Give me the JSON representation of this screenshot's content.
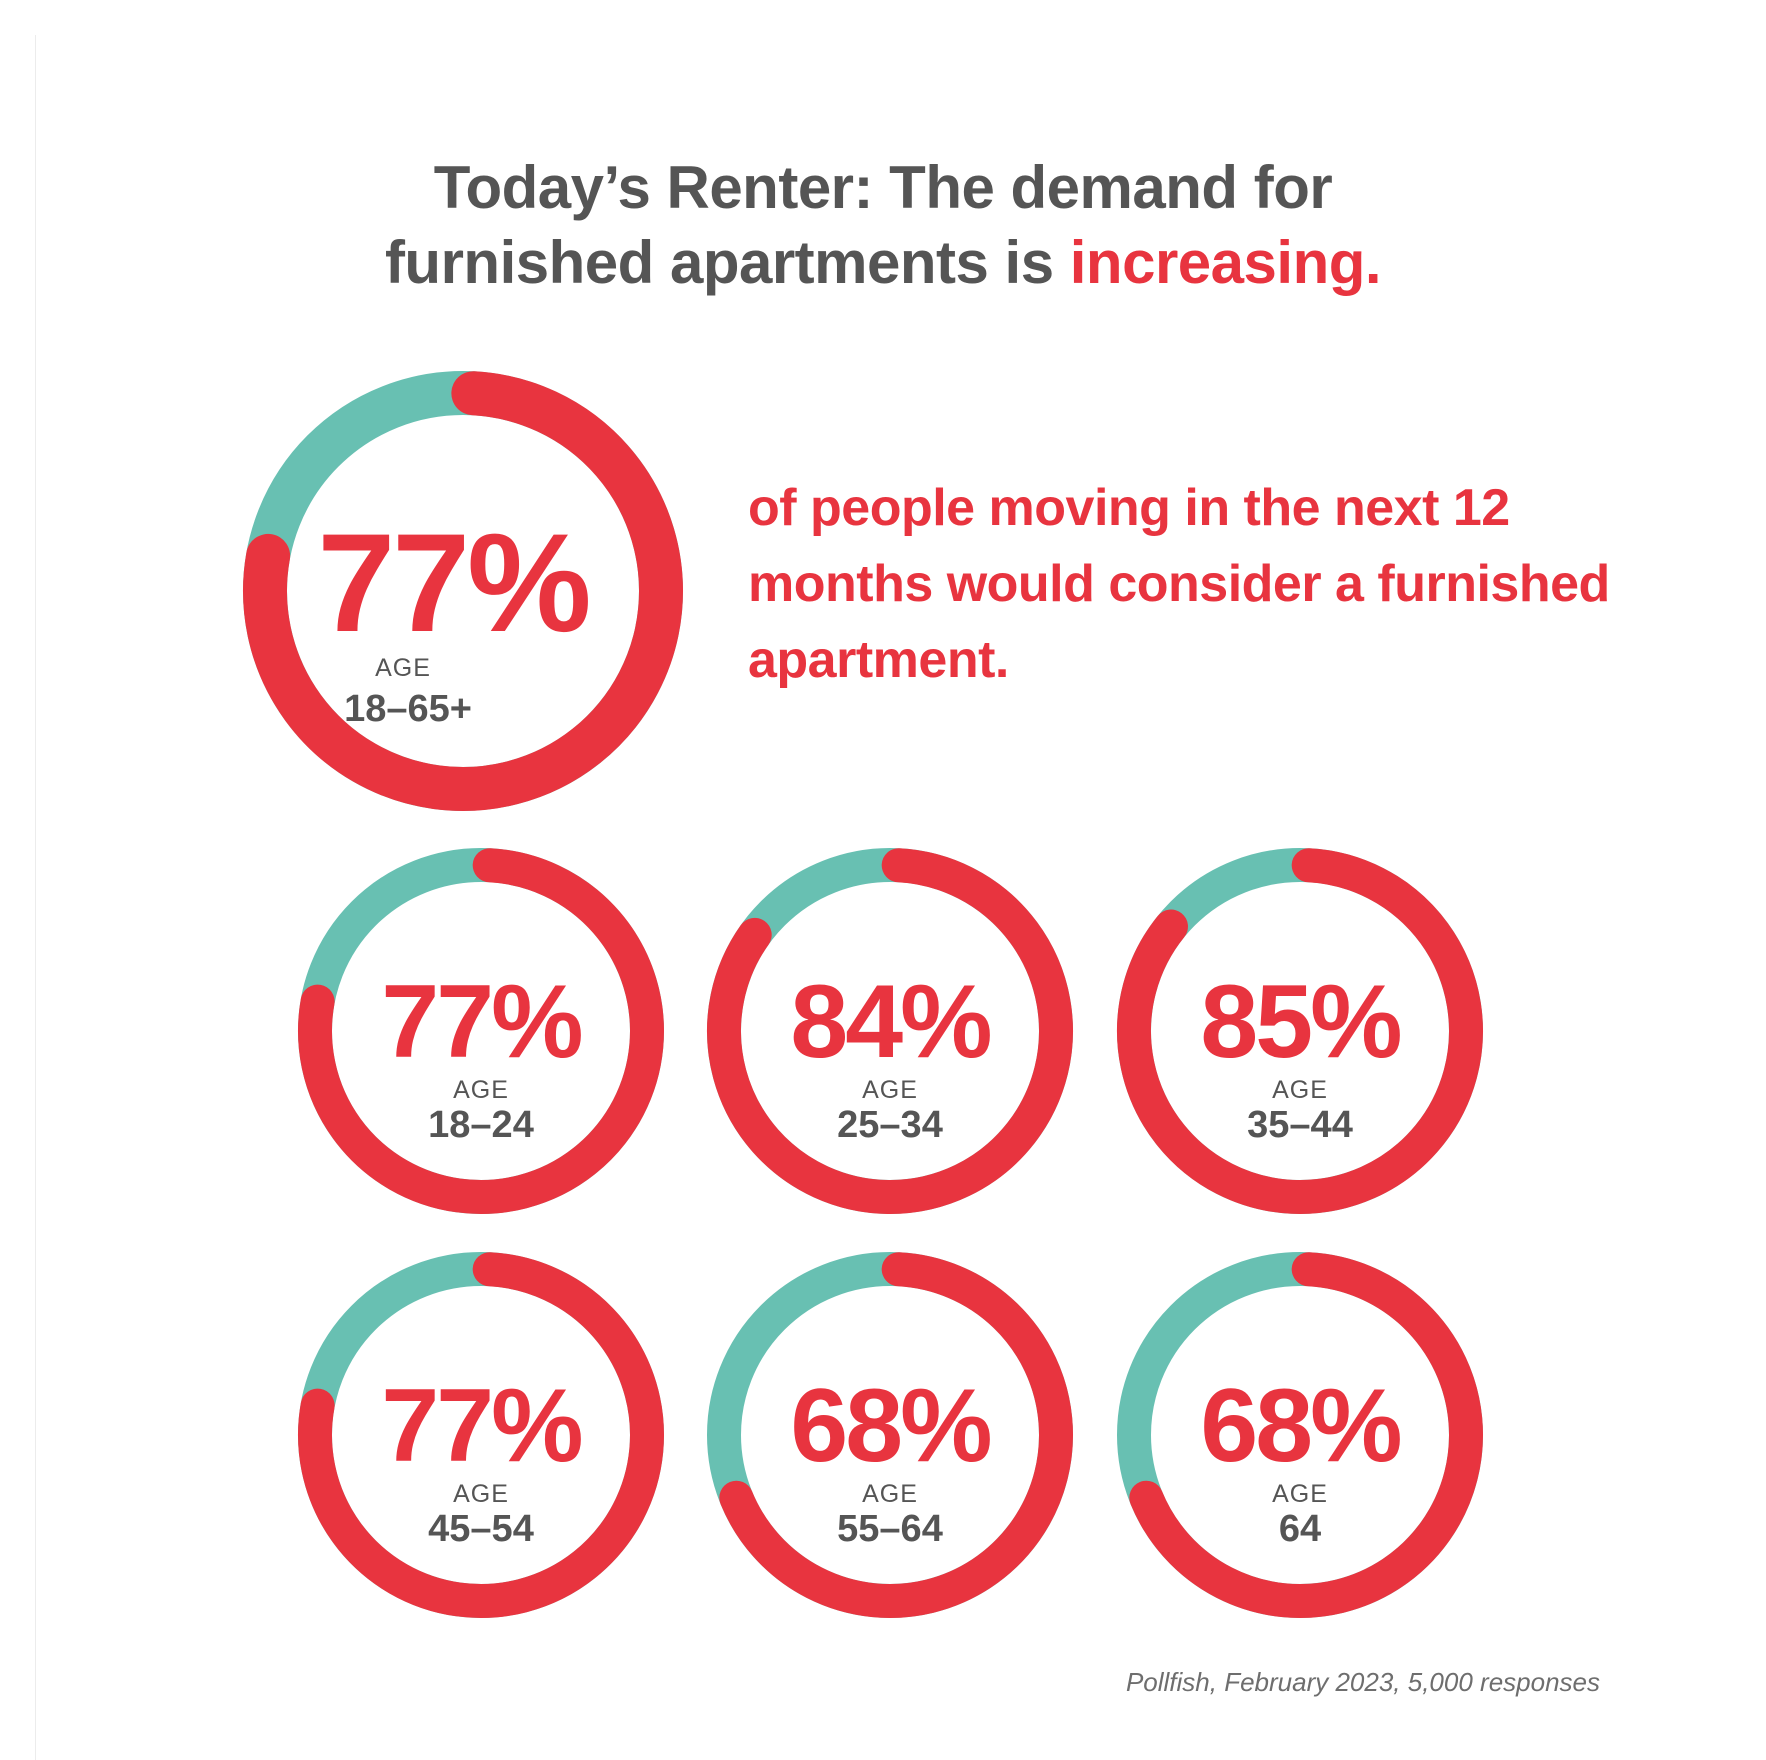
{
  "title": {
    "line1": "Today’s Renter: The demand for",
    "line2_plain": "furnished apartments is ",
    "line2_accent": "increasing."
  },
  "tagline": "of people moving in the next 12 months would consider a furnished apartment.",
  "source": "Pollfish, February 2023, 5,000 responses",
  "colors": {
    "accent": "#e8343f",
    "teal": "#68c0b2",
    "text": "#555555"
  },
  "chart_data": {
    "type": "donut",
    "items": [
      {
        "value": 77,
        "value_label": "77%",
        "caption": "AGE",
        "age": "18–65+",
        "primary": true
      },
      {
        "value": 77,
        "value_label": "77%",
        "caption": "AGE",
        "age": "18–24"
      },
      {
        "value": 84,
        "value_label": "84%",
        "caption": "AGE",
        "age": "25–34"
      },
      {
        "value": 85,
        "value_label": "85%",
        "caption": "AGE",
        "age": "35–44"
      },
      {
        "value": 77,
        "value_label": "77%",
        "caption": "AGE",
        "age": "45–54"
      },
      {
        "value": 68,
        "value_label": "68%",
        "caption": "AGE",
        "age": "55–64"
      },
      {
        "value": 68,
        "value_label": "68%",
        "caption": "AGE",
        "age": "64"
      }
    ]
  }
}
